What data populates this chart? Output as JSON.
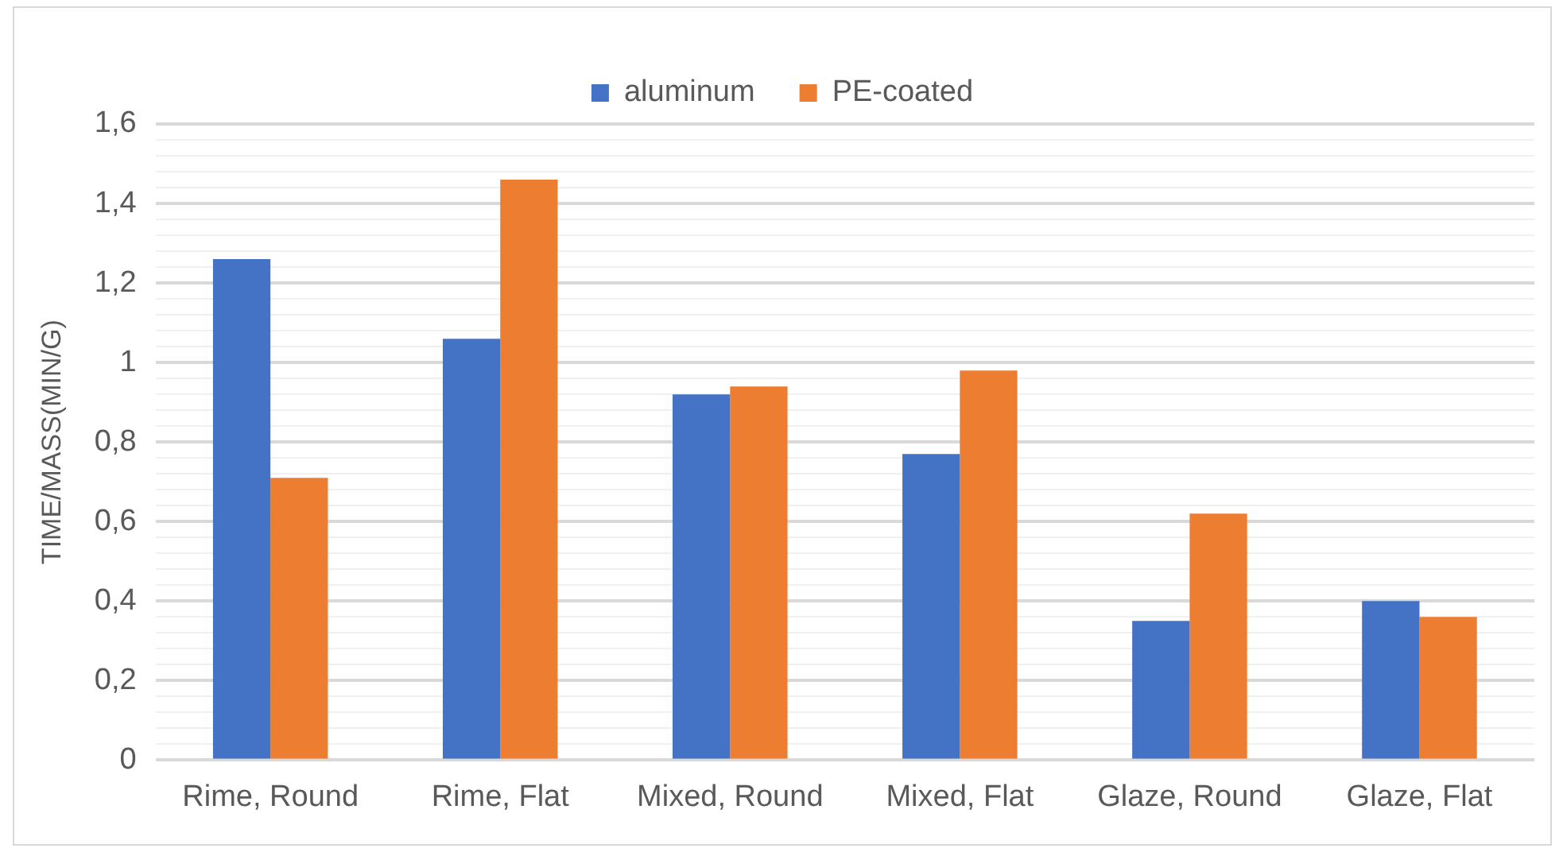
{
  "chart_data": {
    "type": "bar",
    "ylabel": "TIME/MASS(MIN/G)",
    "categories": [
      "Rime, Round",
      "Rime, Flat",
      "Mixed, Round",
      "Mixed, Flat",
      "Glaze, Round",
      "Glaze, Flat"
    ],
    "series": [
      {
        "name": "aluminum",
        "color": "#4472c4",
        "values": [
          1.26,
          1.06,
          0.92,
          0.77,
          0.35,
          0.4
        ]
      },
      {
        "name": "PE-coated",
        "color": "#ed7d31",
        "values": [
          0.71,
          1.46,
          0.94,
          0.98,
          0.62,
          0.36
        ]
      }
    ],
    "ylim": [
      0,
      1.6
    ],
    "yticks": [
      {
        "value": 0,
        "label": "0"
      },
      {
        "value": 0.04,
        "label": null
      },
      {
        "value": 0.08,
        "label": null
      },
      {
        "value": 0.12,
        "label": null
      },
      {
        "value": 0.16,
        "label": null
      },
      {
        "value": 0.2,
        "label": "0,2"
      },
      {
        "value": 0.24,
        "label": null
      },
      {
        "value": 0.28,
        "label": null
      },
      {
        "value": 0.32,
        "label": null
      },
      {
        "value": 0.36,
        "label": null
      },
      {
        "value": 0.4,
        "label": "0,4"
      },
      {
        "value": 0.44,
        "label": null
      },
      {
        "value": 0.48,
        "label": null
      },
      {
        "value": 0.52,
        "label": null
      },
      {
        "value": 0.56,
        "label": null
      },
      {
        "value": 0.6,
        "label": "0,6"
      },
      {
        "value": 0.64,
        "label": null
      },
      {
        "value": 0.68,
        "label": null
      },
      {
        "value": 0.72,
        "label": null
      },
      {
        "value": 0.76,
        "label": null
      },
      {
        "value": 0.8,
        "label": "0,8"
      },
      {
        "value": 0.84,
        "label": null
      },
      {
        "value": 0.88,
        "label": null
      },
      {
        "value": 0.92,
        "label": null
      },
      {
        "value": 0.96,
        "label": null
      },
      {
        "value": 1,
        "label": "1"
      },
      {
        "value": 1.04,
        "label": null
      },
      {
        "value": 1.08,
        "label": null
      },
      {
        "value": 1.12,
        "label": null
      },
      {
        "value": 1.16,
        "label": null
      },
      {
        "value": 1.2,
        "label": "1,2"
      },
      {
        "value": 1.24,
        "label": null
      },
      {
        "value": 1.28,
        "label": null
      },
      {
        "value": 1.32,
        "label": null
      },
      {
        "value": 1.36,
        "label": null
      },
      {
        "value": 1.4,
        "label": "1,4"
      },
      {
        "value": 1.44,
        "label": null
      },
      {
        "value": 1.48,
        "label": null
      },
      {
        "value": 1.52,
        "label": null
      },
      {
        "value": 1.56,
        "label": null
      },
      {
        "value": 1.6,
        "label": "1,6"
      }
    ],
    "grid": "y",
    "legend": "top"
  }
}
